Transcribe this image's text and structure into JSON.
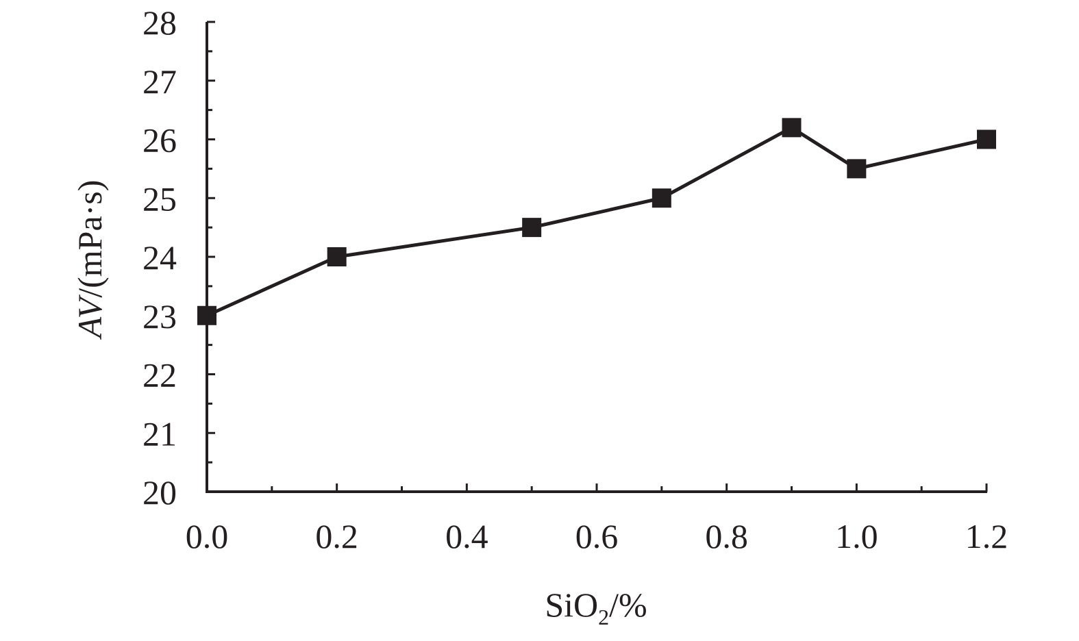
{
  "chart_data": {
    "type": "line",
    "xlabel": {
      "main": "SiO",
      "sub": "2",
      "suffix": "/%"
    },
    "ylabel": {
      "italic": "AV",
      "rest": "/(mPa·s)"
    },
    "xlim": [
      0,
      1.2
    ],
    "ylim": [
      20,
      28
    ],
    "x_ticks": [
      0,
      0.2,
      0.4,
      0.6,
      0.8,
      1.0,
      1.2
    ],
    "x_tick_labels": [
      "0.0",
      "0.2",
      "0.4",
      "0.6",
      "0.8",
      "1.0",
      "1.2"
    ],
    "x_minor_ticks": [
      0.1,
      0.3,
      0.5,
      0.7,
      0.9,
      1.1
    ],
    "y_ticks": [
      20,
      21,
      22,
      23,
      24,
      25,
      26,
      27,
      28
    ],
    "y_tick_labels": [
      "20",
      "21",
      "22",
      "23",
      "24",
      "25",
      "26",
      "27",
      "28"
    ],
    "y_minor_ticks": [
      20.5,
      21.5,
      22.5,
      23.5,
      24.5,
      25.5,
      26.5,
      27.5
    ],
    "grid": false,
    "series": [
      {
        "x": [
          0,
          0.2,
          0.5,
          0.7,
          0.9,
          1.0,
          1.2
        ],
        "y": [
          23.0,
          24.0,
          24.5,
          25.0,
          26.2,
          25.5,
          26.0
        ],
        "marker": "square",
        "color": "#231f20"
      }
    ]
  }
}
